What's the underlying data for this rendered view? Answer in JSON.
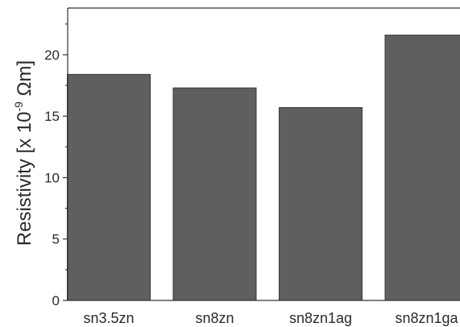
{
  "chart_data": {
    "type": "bar",
    "categories": [
      "sn3.5zn",
      "sn8zn",
      "sn8zn1ag",
      "sn8zn1ga"
    ],
    "values": [
      18.4,
      17.3,
      15.7,
      21.6
    ],
    "title": "",
    "xlabel": "",
    "ylabel": "Resistivity [x 10",
    "ylabel_exponent": "-9",
    "ylabel_unit": " Ωm]",
    "ylim": [
      0,
      23.8
    ],
    "yticks": [
      0,
      5,
      10,
      15,
      20
    ],
    "ytick_labels": [
      "0",
      "5",
      "10",
      "15",
      "20"
    ],
    "grid": false,
    "legend": "none",
    "bar_color": "#5f5f5f",
    "bar_edge_color": "#3a3a3a",
    "axis_color": "#333333"
  }
}
